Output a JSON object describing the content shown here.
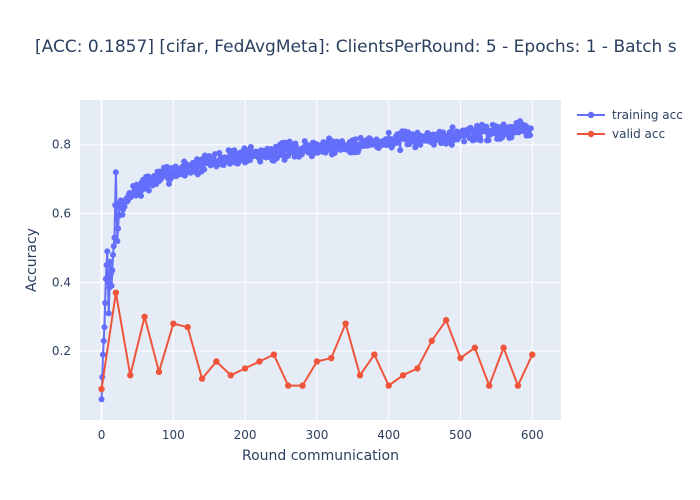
{
  "chart_data": {
    "type": "line",
    "title": "[ACC: 0.1857] [cifar, FedAvgMeta]: ClientsPerRound: 5 - Epochs: 1 - Batch s",
    "xlabel": "Round communication",
    "ylabel": "Accuracy",
    "xlim": [
      -30,
      640
    ],
    "ylim": [
      0.0,
      0.93
    ],
    "x_ticks": [
      0,
      100,
      200,
      300,
      400,
      500,
      600
    ],
    "y_ticks": [
      0.2,
      0.4,
      0.6,
      0.8
    ],
    "x_tick_labels": [
      "0",
      "100",
      "200",
      "300",
      "400",
      "500",
      "600"
    ],
    "y_tick_labels": [
      "0.2",
      "0.4",
      "0.6",
      "0.8"
    ],
    "legend": {
      "position": "top-right",
      "entries": [
        "training acc",
        "valid acc"
      ]
    },
    "series": [
      {
        "name": "training acc",
        "color": "#636efa",
        "description": "600 rounds; noisy curve rising quickly from ~0.06 to ~0.65 by round 25 and slowly to ~0.85 by round 600",
        "x": [
          0,
          2,
          4,
          6,
          8,
          10,
          12,
          14,
          16,
          18,
          20,
          22,
          25,
          30,
          40,
          50,
          75,
          100,
          150,
          200,
          250,
          300,
          350,
          400,
          450,
          500,
          550,
          598
        ],
        "values": [
          0.06,
          0.19,
          0.27,
          0.41,
          0.49,
          0.31,
          0.46,
          0.39,
          0.48,
          0.53,
          0.72,
          0.52,
          0.63,
          0.61,
          0.66,
          0.67,
          0.7,
          0.72,
          0.75,
          0.77,
          0.78,
          0.79,
          0.8,
          0.81,
          0.82,
          0.83,
          0.84,
          0.85
        ],
        "noise": 0.03,
        "seed": 7
      },
      {
        "name": "valid acc",
        "color": "#ef553b",
        "x": [
          0,
          20,
          40,
          60,
          80,
          100,
          120,
          140,
          160,
          180,
          200,
          220,
          240,
          260,
          280,
          300,
          320,
          340,
          360,
          380,
          400,
          420,
          440,
          460,
          480,
          500,
          520,
          540,
          560,
          580,
          600
        ],
        "values": [
          0.09,
          0.37,
          0.13,
          0.3,
          0.14,
          0.28,
          0.27,
          0.12,
          0.17,
          0.13,
          0.15,
          0.17,
          0.19,
          0.1,
          0.1,
          0.17,
          0.18,
          0.28,
          0.13,
          0.19,
          0.1,
          0.13,
          0.15,
          0.23,
          0.29,
          0.18,
          0.21,
          0.1,
          0.21,
          0.1,
          0.19
        ]
      }
    ]
  }
}
